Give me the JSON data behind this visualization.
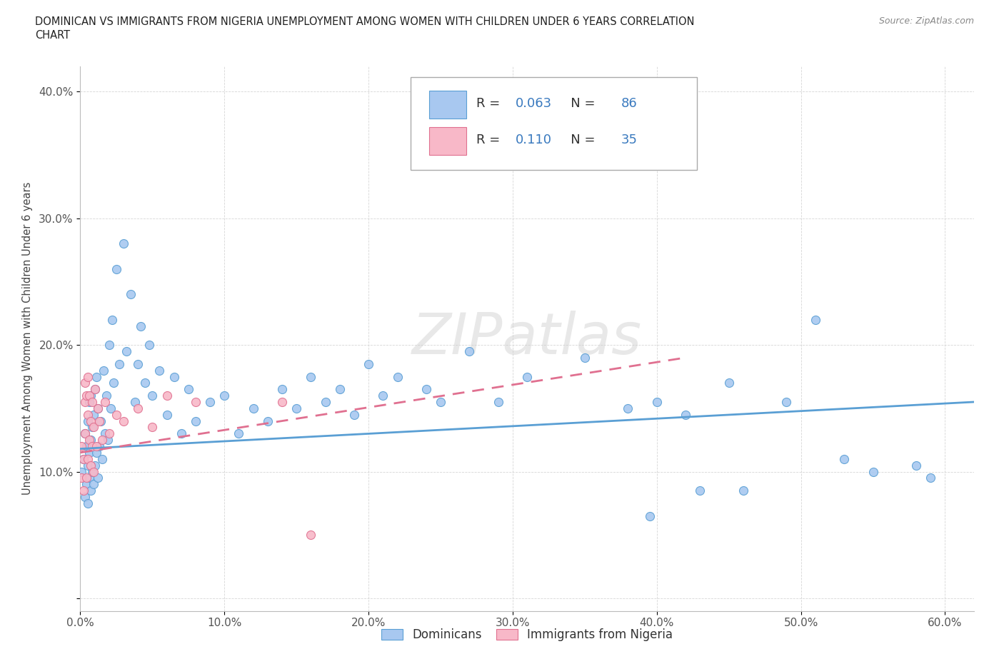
{
  "title_line1": "DOMINICAN VS IMMIGRANTS FROM NIGERIA UNEMPLOYMENT AMONG WOMEN WITH CHILDREN UNDER 6 YEARS CORRELATION",
  "title_line2": "CHART",
  "source_text": "Source: ZipAtlas.com",
  "ylabel": "Unemployment Among Women with Children Under 6 years",
  "xlim": [
    0.0,
    0.62
  ],
  "ylim": [
    -0.01,
    0.42
  ],
  "xticks": [
    0.0,
    0.1,
    0.2,
    0.3,
    0.4,
    0.5,
    0.6
  ],
  "yticks": [
    0.0,
    0.1,
    0.2,
    0.3,
    0.4
  ],
  "xtick_labels": [
    "0.0%",
    "10.0%",
    "20.0%",
    "30.0%",
    "40.0%",
    "50.0%",
    "60.0%"
  ],
  "ytick_labels": [
    "",
    "10.0%",
    "20.0%",
    "30.0%",
    "40.0%"
  ],
  "dominican_fill": "#a8c8f0",
  "dominican_edge": "#5a9fd4",
  "nigeria_fill": "#f8b8c8",
  "nigeria_edge": "#e07090",
  "trend_dominican_color": "#5a9fd4",
  "trend_nigeria_color": "#e07090",
  "watermark": "ZIPatlas",
  "legend_R_dom": "0.063",
  "legend_N_dom": "86",
  "legend_R_nig": "0.110",
  "legend_N_nig": "35",
  "dom_x": [
    0.001,
    0.002,
    0.003,
    0.003,
    0.004,
    0.004,
    0.005,
    0.005,
    0.005,
    0.006,
    0.006,
    0.006,
    0.007,
    0.007,
    0.007,
    0.008,
    0.008,
    0.009,
    0.009,
    0.01,
    0.01,
    0.011,
    0.011,
    0.012,
    0.012,
    0.013,
    0.014,
    0.015,
    0.016,
    0.017,
    0.018,
    0.019,
    0.02,
    0.021,
    0.022,
    0.023,
    0.025,
    0.027,
    0.03,
    0.032,
    0.035,
    0.038,
    0.04,
    0.042,
    0.045,
    0.048,
    0.05,
    0.055,
    0.06,
    0.065,
    0.07,
    0.075,
    0.08,
    0.09,
    0.1,
    0.11,
    0.12,
    0.13,
    0.14,
    0.15,
    0.16,
    0.17,
    0.18,
    0.19,
    0.2,
    0.21,
    0.22,
    0.24,
    0.25,
    0.27,
    0.29,
    0.31,
    0.35,
    0.38,
    0.4,
    0.42,
    0.45,
    0.49,
    0.53,
    0.55,
    0.58,
    0.59,
    0.51,
    0.46,
    0.43,
    0.395
  ],
  "dom_y": [
    0.1,
    0.11,
    0.08,
    0.13,
    0.09,
    0.12,
    0.075,
    0.105,
    0.14,
    0.095,
    0.115,
    0.155,
    0.085,
    0.125,
    0.16,
    0.1,
    0.135,
    0.09,
    0.145,
    0.105,
    0.165,
    0.115,
    0.175,
    0.095,
    0.15,
    0.12,
    0.14,
    0.11,
    0.18,
    0.13,
    0.16,
    0.125,
    0.2,
    0.15,
    0.22,
    0.17,
    0.26,
    0.185,
    0.28,
    0.195,
    0.24,
    0.155,
    0.185,
    0.215,
    0.17,
    0.2,
    0.16,
    0.18,
    0.145,
    0.175,
    0.13,
    0.165,
    0.14,
    0.155,
    0.16,
    0.13,
    0.15,
    0.14,
    0.165,
    0.15,
    0.175,
    0.155,
    0.165,
    0.145,
    0.185,
    0.16,
    0.175,
    0.165,
    0.155,
    0.195,
    0.155,
    0.175,
    0.19,
    0.15,
    0.155,
    0.145,
    0.17,
    0.155,
    0.11,
    0.1,
    0.105,
    0.095,
    0.22,
    0.085,
    0.085,
    0.065
  ],
  "nig_x": [
    0.001,
    0.001,
    0.002,
    0.002,
    0.003,
    0.003,
    0.003,
    0.004,
    0.004,
    0.005,
    0.005,
    0.005,
    0.006,
    0.006,
    0.007,
    0.007,
    0.008,
    0.008,
    0.009,
    0.009,
    0.01,
    0.011,
    0.012,
    0.013,
    0.015,
    0.017,
    0.02,
    0.025,
    0.03,
    0.04,
    0.05,
    0.06,
    0.08,
    0.14,
    0.16
  ],
  "nig_y": [
    0.095,
    0.12,
    0.085,
    0.11,
    0.17,
    0.13,
    0.155,
    0.095,
    0.16,
    0.11,
    0.145,
    0.175,
    0.125,
    0.16,
    0.105,
    0.14,
    0.12,
    0.155,
    0.1,
    0.135,
    0.165,
    0.12,
    0.15,
    0.14,
    0.125,
    0.155,
    0.13,
    0.145,
    0.14,
    0.15,
    0.135,
    0.16,
    0.155,
    0.155,
    0.05
  ]
}
